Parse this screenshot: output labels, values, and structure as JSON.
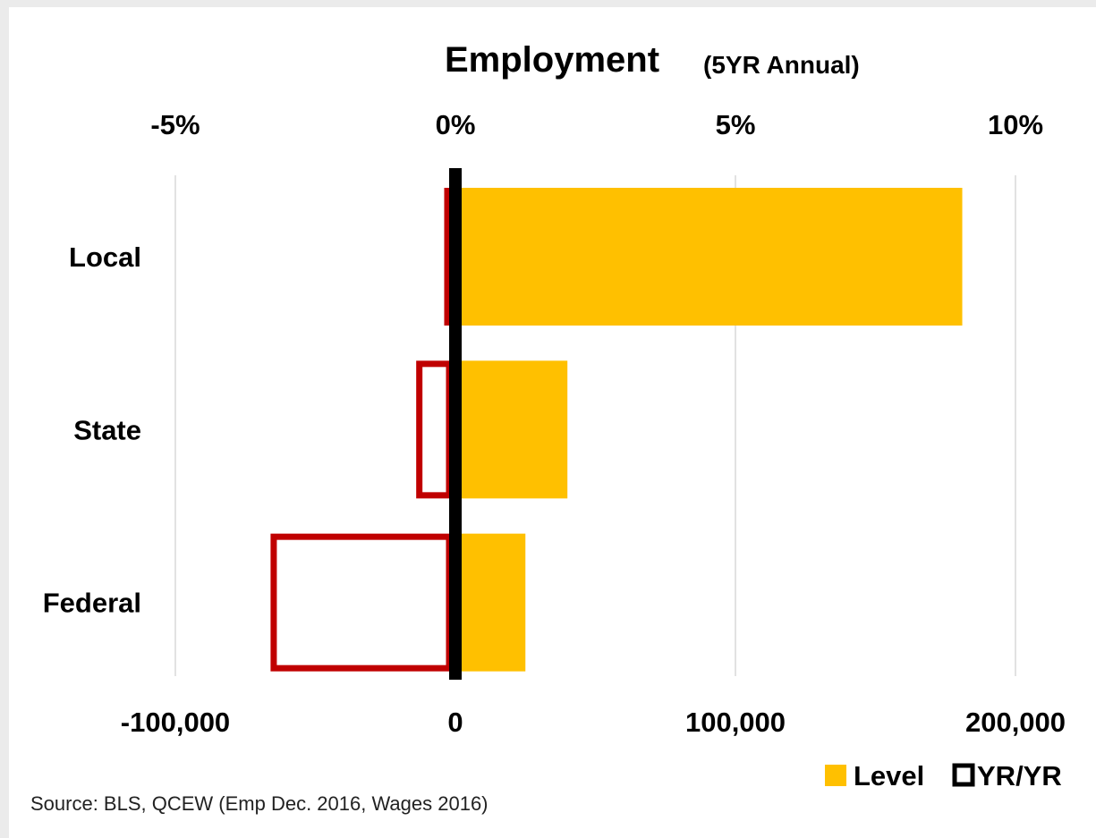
{
  "chart_data": {
    "type": "bar",
    "orientation": "horizontal",
    "title": "Employment",
    "subtitle": "(5YR Annual)",
    "categories": [
      "Local",
      "State",
      "Federal"
    ],
    "series": [
      {
        "name": "Level",
        "axis": "bottom",
        "unit": "jobs",
        "values": [
          181000,
          40000,
          25000
        ],
        "color": "#FFC000",
        "style": "filled"
      },
      {
        "name": "YR/YR",
        "axis": "top",
        "unit": "percent",
        "values": [
          -0.2,
          -0.7,
          -3.3
        ],
        "color": "#C00000",
        "style": "outline"
      }
    ],
    "x_bottom": {
      "range": [
        -100000,
        200000
      ],
      "ticks": [
        -100000,
        0,
        100000,
        200000
      ],
      "tick_labels": [
        "-100,000",
        "0",
        "100,000",
        "200,000"
      ]
    },
    "x_top": {
      "range": [
        -5,
        10
      ],
      "ticks": [
        -5,
        0,
        5,
        10
      ],
      "tick_labels": [
        "-5%",
        "0%",
        "5%",
        "10%"
      ]
    },
    "grid": "vertical",
    "legend_position": "bottom-right",
    "legend": [
      {
        "label": "Level",
        "swatch": "filled",
        "color": "#FFC000"
      },
      {
        "label": "YR/YR",
        "swatch": "outline",
        "color": "#000000"
      }
    ],
    "zero_line_color": "#000000",
    "source": "Source: BLS, QCEW (Emp Dec.  2016, Wages 2016)"
  }
}
